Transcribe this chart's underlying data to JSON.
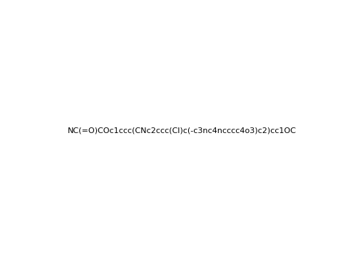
{
  "smiles": "NC(=O)COc1ccc(CNc2ccc(Cl)c(-c3nc4ncccc4o3)c2)cc1OC",
  "title": "",
  "background_color": "#ffffff",
  "line_color": "#000000",
  "figsize": [
    4.98,
    3.64
  ],
  "dpi": 100
}
